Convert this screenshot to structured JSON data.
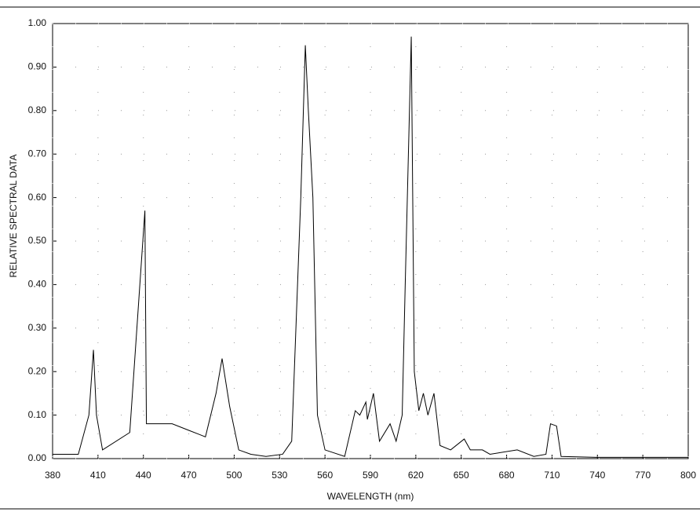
{
  "chart_data": {
    "type": "line",
    "x_label": "WAVELENGTH (nm)",
    "y_label": "RELATIVE SPECTRAL DATA",
    "x": [
      380,
      390,
      397,
      404,
      407,
      409,
      413,
      431,
      441,
      442,
      443,
      459,
      470,
      481,
      488,
      492,
      497,
      503,
      511,
      521,
      532,
      538,
      544,
      547,
      549,
      552,
      555,
      560,
      573,
      580,
      583,
      587,
      588,
      592,
      596,
      603,
      607,
      611,
      613,
      617,
      619,
      622,
      625,
      628,
      632,
      636,
      643,
      652,
      656,
      664,
      669,
      687,
      698,
      706,
      709,
      713,
      716,
      739,
      800
    ],
    "values": [
      0.01,
      0.01,
      0.01,
      0.1,
      0.25,
      0.1,
      0.02,
      0.06,
      0.57,
      0.08,
      0.08,
      0.08,
      0.065,
      0.05,
      0.15,
      0.23,
      0.12,
      0.02,
      0.01,
      0.005,
      0.01,
      0.04,
      0.6,
      0.95,
      0.8,
      0.6,
      0.1,
      0.02,
      0.005,
      0.11,
      0.1,
      0.13,
      0.09,
      0.15,
      0.04,
      0.08,
      0.04,
      0.1,
      0.4,
      0.97,
      0.2,
      0.11,
      0.15,
      0.1,
      0.15,
      0.03,
      0.02,
      0.045,
      0.02,
      0.02,
      0.01,
      0.02,
      0.005,
      0.01,
      0.08,
      0.075,
      0.005,
      0.003,
      0.003
    ],
    "color": "#000000",
    "xlim": [
      380,
      800
    ],
    "xticks": [
      380,
      410,
      440,
      470,
      500,
      530,
      560,
      590,
      620,
      650,
      680,
      710,
      740,
      770,
      800
    ],
    "ylim": [
      0,
      1
    ],
    "yticks": [
      {
        "value": 0,
        "label": "0.00"
      },
      {
        "value": 0.1,
        "label": "0.10"
      },
      {
        "value": 0.2,
        "label": "0.20"
      },
      {
        "value": 0.3,
        "label": "0.30"
      },
      {
        "value": 0.4,
        "label": "0.40"
      },
      {
        "value": 0.5,
        "label": "0.50"
      },
      {
        "value": 0.6,
        "label": "0.60"
      },
      {
        "value": 0.7,
        "label": "0.70"
      },
      {
        "value": 0.8,
        "label": "0.80"
      },
      {
        "value": 0.9,
        "label": "0.90"
      },
      {
        "value": 1,
        "label": "1.00"
      }
    ],
    "grid": true
  }
}
